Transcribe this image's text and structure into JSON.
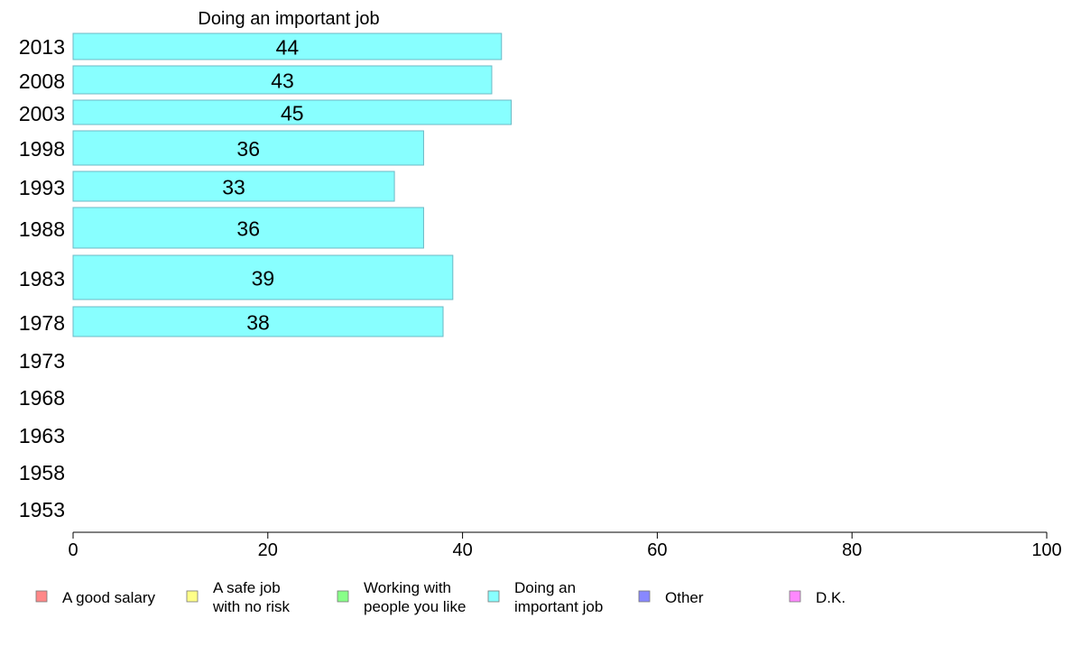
{
  "chart_data": {
    "type": "bar",
    "orientation": "horizontal",
    "title": "Doing an important job",
    "xlim": [
      0,
      100
    ],
    "x_ticks": [
      "0",
      "20",
      "40",
      "60",
      "80",
      "100"
    ],
    "categories": [
      "2013",
      "2008",
      "2003",
      "1998",
      "1993",
      "1988",
      "1983",
      "1978",
      "1973",
      "1968",
      "1963",
      "1958",
      "1953"
    ],
    "series": [
      {
        "name": "Doing an important job",
        "color": "#88ffff",
        "values": [
          44,
          43,
          45,
          36,
          33,
          36,
          39,
          38,
          null,
          null,
          null,
          null,
          null
        ]
      }
    ],
    "legend": {
      "placement": "bottom",
      "items": [
        {
          "label": "A good salary",
          "color": "#ff8888"
        },
        {
          "label": "A safe job\nwith no risk",
          "color": "#ffff88"
        },
        {
          "label": "Working with\npeople you like",
          "color": "#88ff88"
        },
        {
          "label": "Doing an\nimportant job",
          "color": "#88ffff"
        },
        {
          "label": "Other",
          "color": "#8888ff"
        },
        {
          "label": "D.K.",
          "color": "#ff88ff"
        }
      ]
    },
    "grid": false
  }
}
